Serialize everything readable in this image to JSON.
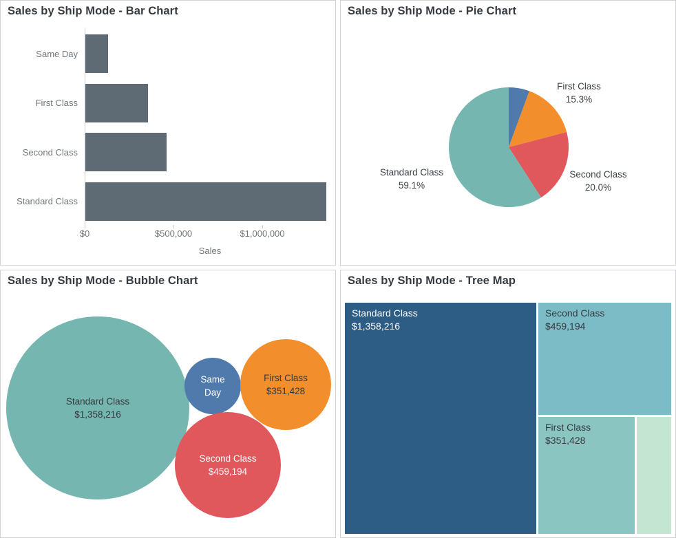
{
  "dashboard": {
    "background": "#ffffff",
    "panel_border_color": "#d2d2d6",
    "title_color": "#363b41"
  },
  "chart_data": [
    {
      "id": "bar-chart",
      "type": "bar",
      "title": "Sales by Ship Mode - Bar Chart",
      "orientation": "horizontal",
      "categories": [
        "Same Day",
        "First Class",
        "Second Class",
        "Standard Class"
      ],
      "values": [
        128363,
        351428,
        459194,
        1358216
      ],
      "xlabel": "Sales",
      "ylabel": "",
      "xlim": [
        0,
        1400000
      ],
      "x_ticks": [
        {
          "label": "$0",
          "value": 0
        },
        {
          "label": "$500,000",
          "value": 500000
        },
        {
          "label": "$1,000,000",
          "value": 1000000
        }
      ],
      "grid": false,
      "bar_color": "#5e6a74",
      "axis_text_color": "#70767b"
    },
    {
      "id": "pie-chart",
      "type": "pie",
      "title": "Sales by Ship Mode - Pie Chart",
      "start_angle_deg": 0,
      "direction": "clockwise",
      "slices": [
        {
          "label": "Same Day",
          "percent": 5.6,
          "color": "#4f7aab",
          "label_visible": false,
          "pct_label": ""
        },
        {
          "label": "First Class",
          "percent": 15.3,
          "color": "#f28e2c",
          "label_visible": true,
          "pct_label": "15.3%"
        },
        {
          "label": "Second Class",
          "percent": 20.0,
          "color": "#e0575c",
          "label_visible": true,
          "pct_label": "20.0%"
        },
        {
          "label": "Standard Class",
          "percent": 59.1,
          "color": "#76b6b0",
          "label_visible": true,
          "pct_label": "59.1%"
        }
      ]
    },
    {
      "id": "bubble-chart",
      "type": "bubble",
      "title": "Sales by Ship Mode - Bubble Chart",
      "bubbles": [
        {
          "label": "Standard Class",
          "value": 1358216,
          "value_label": "$1,358,216",
          "color": "#76b6b0",
          "text_color": "#33393e"
        },
        {
          "label": "Same Day",
          "value": 128363,
          "value_label": "",
          "color": "#4f7aab",
          "text_color": "#ffffff"
        },
        {
          "label": "First Class",
          "value": 351428,
          "value_label": "$351,428",
          "color": "#f28e2c",
          "text_color": "#33393e"
        },
        {
          "label": "Second Class",
          "value": 459194,
          "value_label": "$459,194",
          "color": "#e0575c",
          "text_color": "#ffffff"
        }
      ]
    },
    {
      "id": "treemap",
      "type": "treemap",
      "title": "Sales by Ship Mode - Tree Map",
      "cells": [
        {
          "label": "Standard Class",
          "value": 1358216,
          "value_label": "$1,358,216",
          "color": "#2d5d85",
          "text_color": "#ffffff",
          "label_visible": true
        },
        {
          "label": "Second Class",
          "value": 459194,
          "value_label": "$459,194",
          "color": "#7cbcc6",
          "text_color": "#333b3f",
          "label_visible": true
        },
        {
          "label": "First Class",
          "value": 351428,
          "value_label": "$351,428",
          "color": "#8ac5c1",
          "text_color": "#333b3f",
          "label_visible": true
        },
        {
          "label": "Same Day",
          "value": 128363,
          "value_label": "",
          "color": "#c5e5d3",
          "text_color": "#333b3f",
          "label_visible": false
        }
      ]
    }
  ]
}
